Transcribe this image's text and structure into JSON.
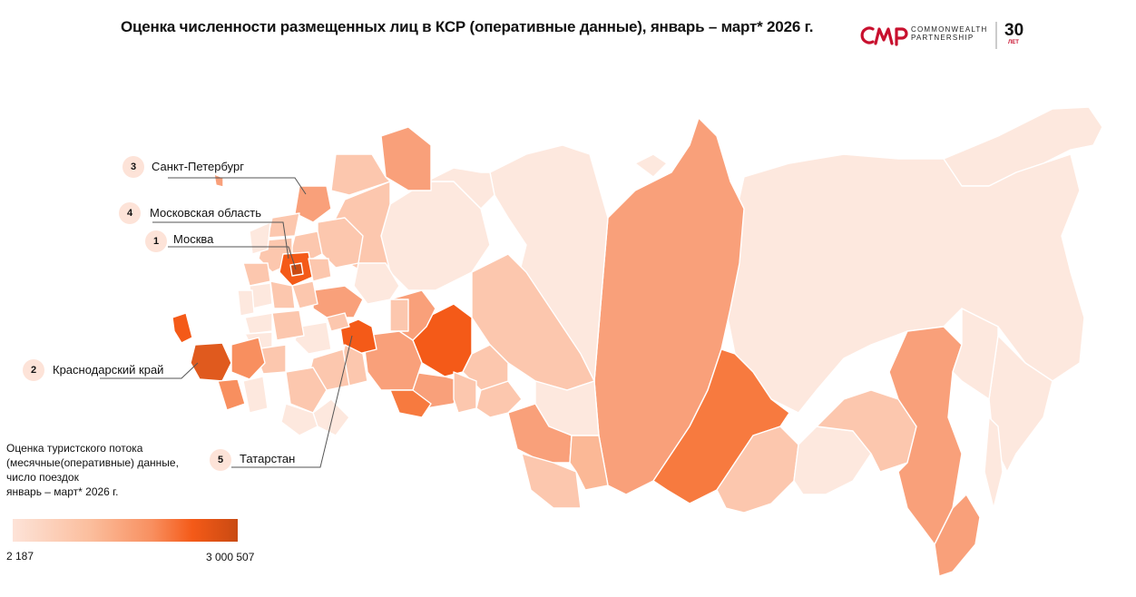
{
  "title": "Оценка численности размещенных лиц в КСР (оперативные данные), январь – март* 2026 г.",
  "logo": {
    "mark": "CMP",
    "line1": "COMMONWEALTH",
    "line2": "PARTNERSHIP",
    "anniversary": "30",
    "anniversary_sub": "ЛЕТ",
    "brand_color": "#c8102e"
  },
  "callouts": [
    {
      "rank": "1",
      "label": "Москва"
    },
    {
      "rank": "2",
      "label": "Краснодарский край"
    },
    {
      "rank": "3",
      "label": "Санкт-Петербург"
    },
    {
      "rank": "4",
      "label": "Московская область"
    },
    {
      "rank": "5",
      "label": "Татарстан"
    }
  ],
  "legend": {
    "title_lines": [
      "Оценка туристского потока",
      "(месячные(оперативные) данные,",
      "число поездок",
      "январь – март* 2026 г."
    ],
    "min": "2 187",
    "max": "3 000 507",
    "colors": [
      "#fde3d8",
      "#fbbd9c",
      "#f88f5f",
      "#f45a18",
      "#c94a12"
    ]
  }
}
